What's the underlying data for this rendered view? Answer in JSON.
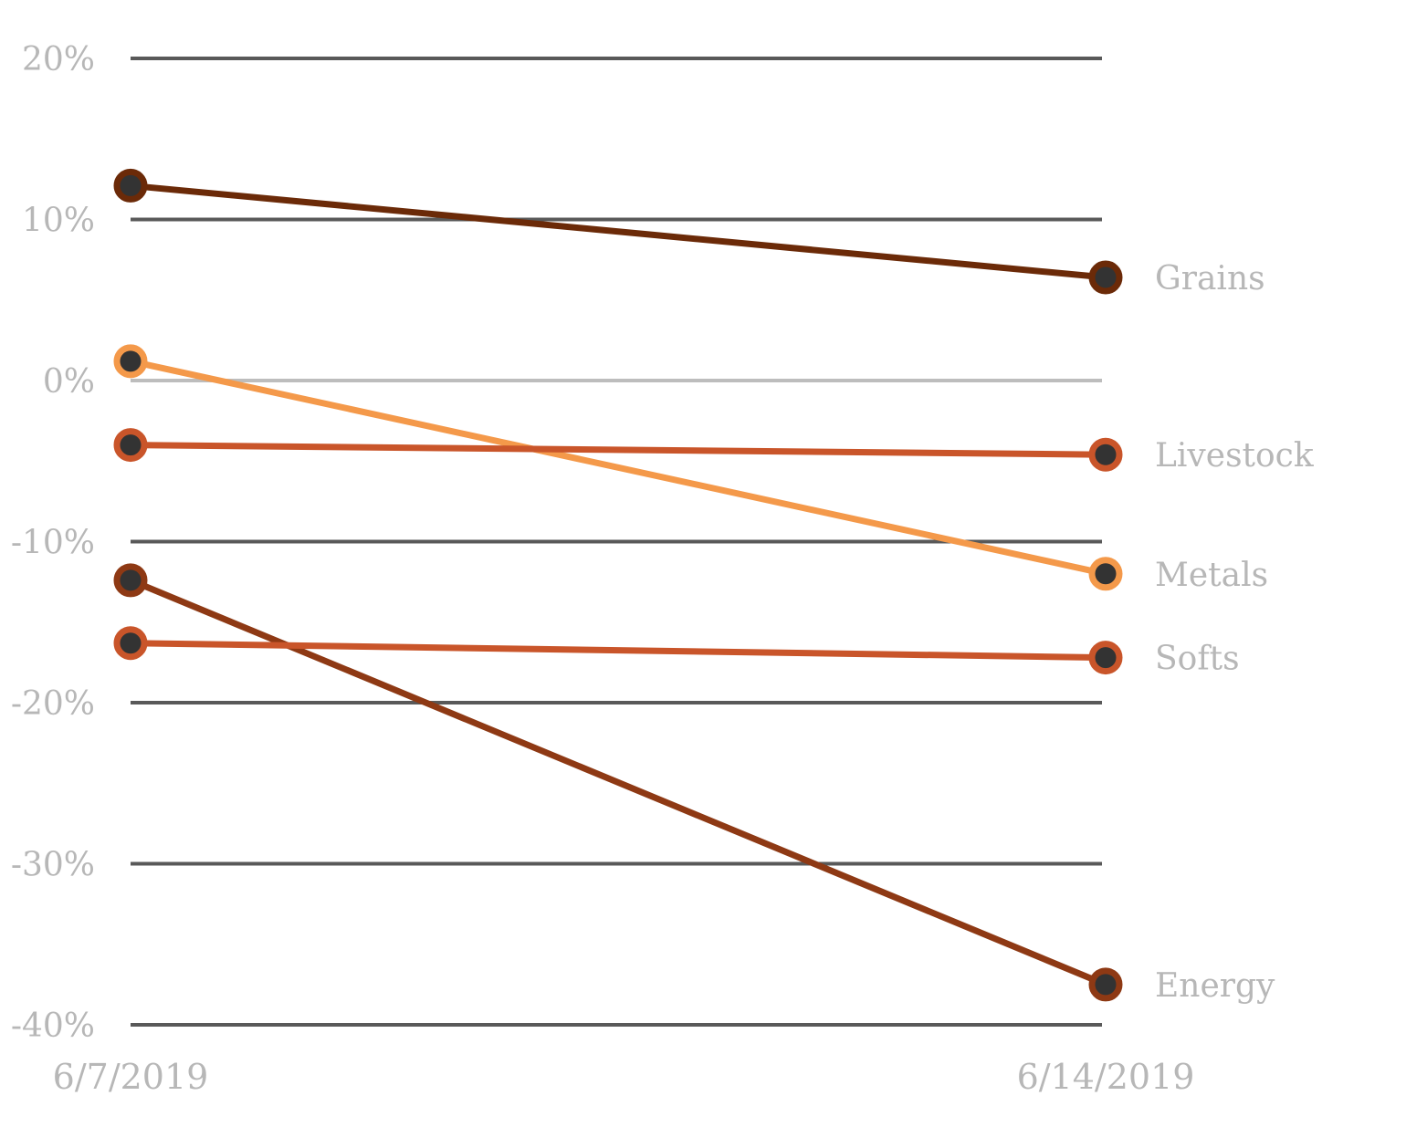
{
  "chart_data": {
    "type": "line",
    "x": [
      "6/7/2019",
      "6/14/2019"
    ],
    "y_ticks": [
      {
        "value": 20,
        "label": "20%"
      },
      {
        "value": 10,
        "label": "10%"
      },
      {
        "value": 0,
        "label": "0%"
      },
      {
        "value": -10,
        "label": "-10%"
      },
      {
        "value": -20,
        "label": "-20%"
      },
      {
        "value": -30,
        "label": "-30%"
      },
      {
        "value": -40,
        "label": "-40%"
      }
    ],
    "ylim": [
      -40,
      20
    ],
    "grid": true,
    "zero_line_color": "#bdbdbd",
    "grid_color": "#595959",
    "marker_center_color": "#333333",
    "series": [
      {
        "name": "Grains",
        "values": [
          12.1,
          6.4
        ],
        "color": "#6b2a08"
      },
      {
        "name": "Metals",
        "values": [
          1.2,
          -12.0
        ],
        "color": "#f4994a"
      },
      {
        "name": "Livestock",
        "values": [
          -4.0,
          -4.6
        ],
        "color": "#c9552a"
      },
      {
        "name": "Energy",
        "values": [
          -12.4,
          -37.5
        ],
        "color": "#8e3914"
      },
      {
        "name": "Softs",
        "values": [
          -16.3,
          -17.2
        ],
        "color": "#c9552a"
      }
    ],
    "legend": "direct labels at right end of lines",
    "title": "",
    "xlabel": "",
    "ylabel": ""
  }
}
